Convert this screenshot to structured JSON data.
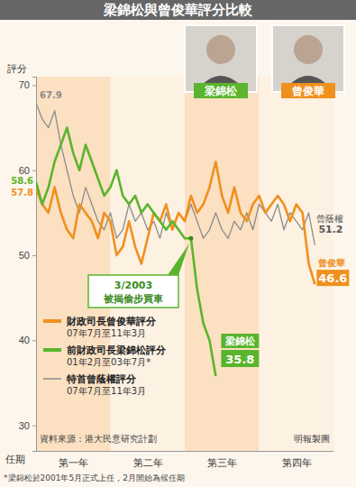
{
  "chart_data": {
    "type": "line",
    "title": "梁錦松與曾俊華評分比較",
    "xlabel": "任期",
    "ylabel": "評分",
    "x": [
      0,
      1,
      2,
      3,
      4,
      5,
      6,
      7,
      8,
      9,
      10,
      11,
      12,
      13,
      14,
      15,
      16,
      17,
      18,
      19,
      20,
      21,
      22,
      23,
      24,
      25,
      26,
      27,
      28,
      29,
      30,
      31,
      32,
      33,
      34,
      35,
      36,
      37,
      38,
      39,
      40,
      41,
      42,
      43,
      44,
      45
    ],
    "xlim": [
      0,
      48
    ],
    "xticks": [
      {
        "value": 6,
        "label": "第一年"
      },
      {
        "value": 18,
        "label": "第二年"
      },
      {
        "value": 30,
        "label": "第三年"
      },
      {
        "value": 42,
        "label": "第四年"
      }
    ],
    "ylim": [
      27,
      71
    ],
    "yticks": [
      30,
      40,
      50,
      60,
      70
    ],
    "grid": false,
    "legend": "lower left",
    "series": [
      {
        "name": "財政司長曾俊華評分",
        "period": "07年7月至11年3月",
        "end_label": "曾俊華",
        "color": "#f0901e",
        "values": [
          57.8,
          56,
          55,
          58,
          55,
          53,
          52,
          56,
          55,
          54,
          52,
          55,
          54,
          50,
          51,
          54,
          51,
          49,
          52,
          55,
          54,
          56,
          53,
          55,
          54,
          57,
          55,
          56,
          58,
          61,
          57,
          55,
          58,
          55,
          54,
          56,
          57,
          55,
          56,
          57,
          56,
          54,
          56,
          55,
          49,
          46.6
        ]
      },
      {
        "name": "前財政司長梁錦松評分",
        "period": "01年2月至03年7月*",
        "end_label": "梁錦松",
        "color": "#5ab42d",
        "values": [
          58.6,
          56,
          58,
          61,
          63,
          65,
          62,
          60,
          63,
          61,
          59,
          57,
          58,
          60,
          57,
          56,
          57,
          55,
          56,
          55,
          54,
          53,
          54,
          53,
          52,
          52,
          46,
          42,
          40,
          35.8,
          null,
          null,
          null,
          null,
          null,
          null,
          null,
          null,
          null,
          null,
          null,
          null,
          null,
          null,
          null,
          null
        ]
      },
      {
        "name": "特首曾蔭權評分",
        "period": "07年7月至11年3月",
        "end_label": "曾蔭權",
        "color": "#8c8c8c",
        "values": [
          67.9,
          66,
          65,
          67,
          63,
          60,
          57,
          55,
          58,
          56,
          54,
          53,
          55,
          52,
          53,
          56,
          54,
          55,
          53,
          54,
          52,
          55,
          53,
          55,
          54,
          56,
          54,
          52,
          53,
          55,
          53,
          52,
          54,
          53,
          55,
          53,
          56,
          55,
          54,
          56,
          53,
          55,
          54,
          53,
          55,
          51.2
        ]
      }
    ],
    "annotations": [
      {
        "lines": [
          "3/2003",
          "被揭偷步買車"
        ],
        "x": 25,
        "y": 52
      }
    ],
    "photo_labels": [
      {
        "text": "梁錦松",
        "color": "#5ab42d"
      },
      {
        "text": "曾俊華",
        "color": "#f0901e"
      }
    ],
    "source": "資料來源：港大民意研究計劃",
    "credit": "明報製圖",
    "footnote": "*梁錦松於2001年5月正式上任，2月開始為候任期"
  }
}
